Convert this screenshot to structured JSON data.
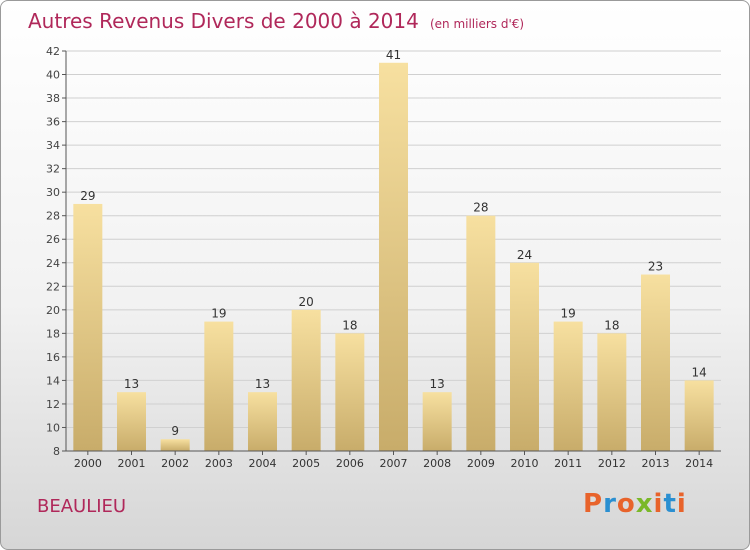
{
  "title": "Autres Revenus Divers de 2000 à 2014",
  "subtitle": "(en milliers d'€)",
  "commune": "BEAULIEU",
  "logo": {
    "text": "Proxiti",
    "colors": [
      "#e8632b",
      "#2a8fd1",
      "#e8632b",
      "#7ab829",
      "#e8632b",
      "#2a8fd1",
      "#e8632b"
    ]
  },
  "colors": {
    "title": "#b0285a",
    "bar_light": "#f7e0a0",
    "bar_dark": "#c8ac6a",
    "grid": "#d0d0d0"
  },
  "chart_data": {
    "type": "bar",
    "categories": [
      "2000",
      "2001",
      "2002",
      "2003",
      "2004",
      "2005",
      "2006",
      "2007",
      "2008",
      "2009",
      "2010",
      "2011",
      "2012",
      "2013",
      "2014"
    ],
    "values": [
      29,
      13,
      9,
      19,
      13,
      20,
      18,
      41,
      13,
      28,
      24,
      19,
      18,
      23,
      14
    ],
    "ylim": [
      8,
      42
    ],
    "yticks": [
      8,
      10,
      12,
      14,
      16,
      18,
      20,
      22,
      24,
      26,
      28,
      30,
      32,
      34,
      36,
      38,
      40,
      42
    ],
    "grid": true,
    "title": "Autres Revenus Divers de 2000 à 2014",
    "xlabel": "",
    "ylabel": ""
  }
}
